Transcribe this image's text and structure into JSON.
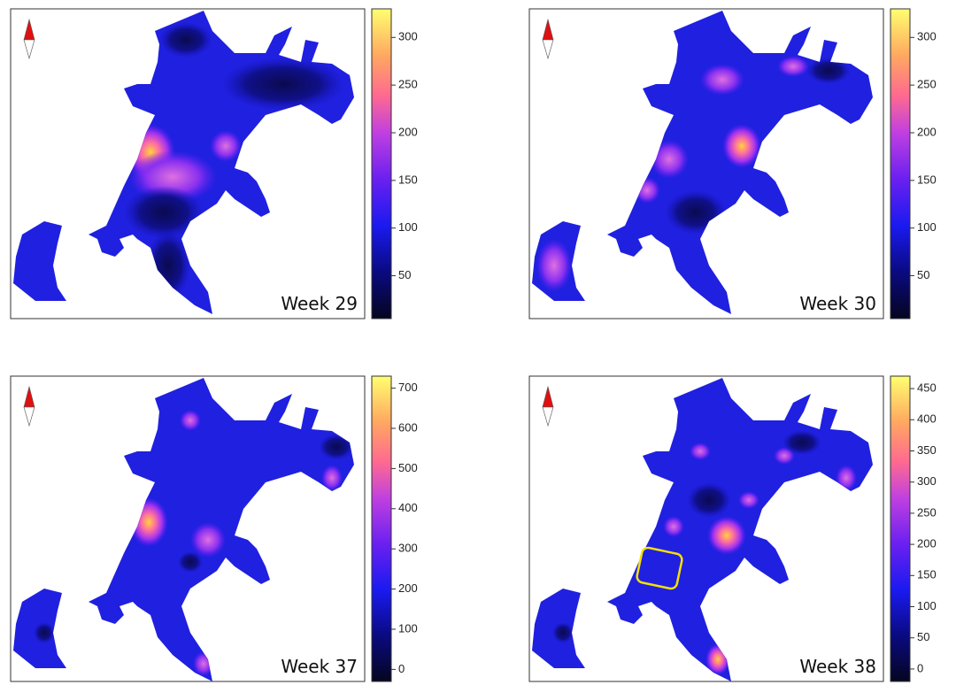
{
  "panels": [
    {
      "label": "Week 29",
      "colorbar": {
        "range": [
          5,
          330
        ],
        "ticks": [
          50,
          100,
          150,
          200,
          250,
          300
        ]
      }
    },
    {
      "label": "Week 30",
      "colorbar": {
        "range": [
          5,
          330
        ],
        "ticks": [
          50,
          100,
          150,
          200,
          250,
          300
        ]
      }
    },
    {
      "label": "Week 37",
      "colorbar": {
        "range": [
          -30,
          730
        ],
        "ticks": [
          0,
          100,
          200,
          300,
          400,
          500,
          600,
          700
        ]
      }
    },
    {
      "label": "Week 38",
      "colorbar": {
        "range": [
          -20,
          470
        ],
        "ticks": [
          0,
          50,
          100,
          150,
          200,
          250,
          300,
          350,
          400,
          450
        ]
      }
    }
  ]
}
